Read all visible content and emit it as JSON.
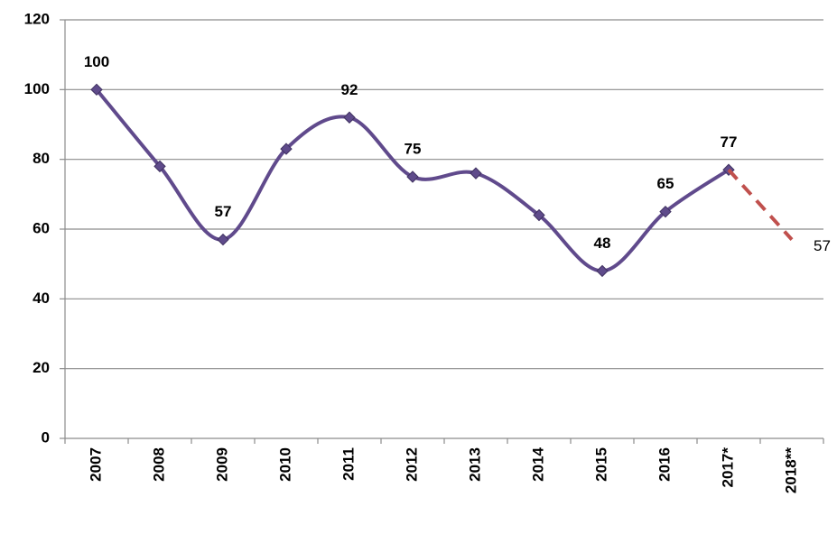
{
  "chart_data": {
    "type": "line",
    "categories": [
      "2007",
      "2008",
      "2009",
      "2010",
      "2011",
      "2012",
      "2013",
      "2014",
      "2015",
      "2016",
      "2017*",
      "2018**"
    ],
    "series": [
      {
        "color": "#604a8c",
        "line_style": "solid",
        "values": [
          100,
          78,
          57,
          83,
          92,
          75,
          76,
          64,
          48,
          65,
          77,
          null
        ],
        "value_labels": [
          "100",
          null,
          "57",
          null,
          "92",
          "75",
          null,
          null,
          "48",
          "65",
          "77",
          null
        ]
      },
      {
        "color": "#c0504d",
        "line_style": "dashed",
        "values": [
          null,
          null,
          null,
          null,
          null,
          null,
          null,
          null,
          null,
          null,
          77,
          57
        ],
        "value_labels": [
          null,
          null,
          null,
          null,
          null,
          null,
          null,
          null,
          null,
          null,
          null,
          "57"
        ]
      }
    ],
    "ylim": [
      0,
      120
    ],
    "yticks": [
      0,
      20,
      40,
      60,
      80,
      100,
      120
    ],
    "grid": true
  }
}
